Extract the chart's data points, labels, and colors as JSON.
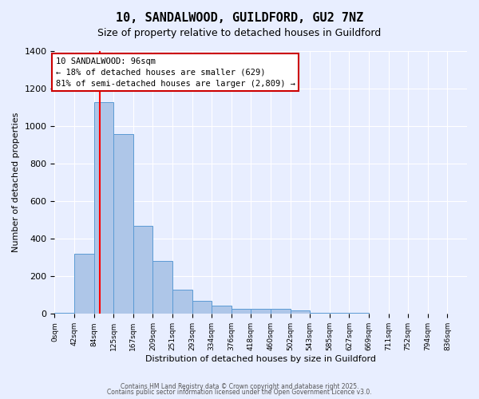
{
  "title": "10, SANDALWOOD, GUILDFORD, GU2 7NZ",
  "subtitle": "Size of property relative to detached houses in Guildford",
  "xlabel": "Distribution of detached houses by size in Guildford",
  "ylabel": "Number of detached properties",
  "bin_labels": [
    "0sqm",
    "42sqm",
    "84sqm",
    "125sqm",
    "167sqm",
    "209sqm",
    "251sqm",
    "293sqm",
    "334sqm",
    "376sqm",
    "418sqm",
    "460sqm",
    "502sqm",
    "543sqm",
    "585sqm",
    "627sqm",
    "669sqm",
    "711sqm",
    "752sqm",
    "794sqm",
    "836sqm"
  ],
  "bar_values": [
    5,
    320,
    1130,
    960,
    470,
    280,
    130,
    70,
    45,
    25,
    25,
    25,
    20,
    5,
    5,
    5,
    3,
    2,
    2,
    1,
    0
  ],
  "bar_color": "#aec6e8",
  "bar_edge_color": "#5b9bd5",
  "ylim": [
    0,
    1400
  ],
  "yticks": [
    0,
    200,
    400,
    600,
    800,
    1000,
    1200,
    1400
  ],
  "red_line_x": 96,
  "bin_width": 42,
  "annotation_title": "10 SANDALWOOD: 96sqm",
  "annotation_line1": "← 18% of detached houses are smaller (629)",
  "annotation_line2": "81% of semi-detached houses are larger (2,809) →",
  "annotation_box_color": "#ffffff",
  "annotation_box_edge": "#cc0000",
  "background_color": "#e8eeff",
  "grid_color": "#ffffff",
  "footer1": "Contains HM Land Registry data © Crown copyright and database right 2025.",
  "footer2": "Contains public sector information licensed under the Open Government Licence v3.0."
}
